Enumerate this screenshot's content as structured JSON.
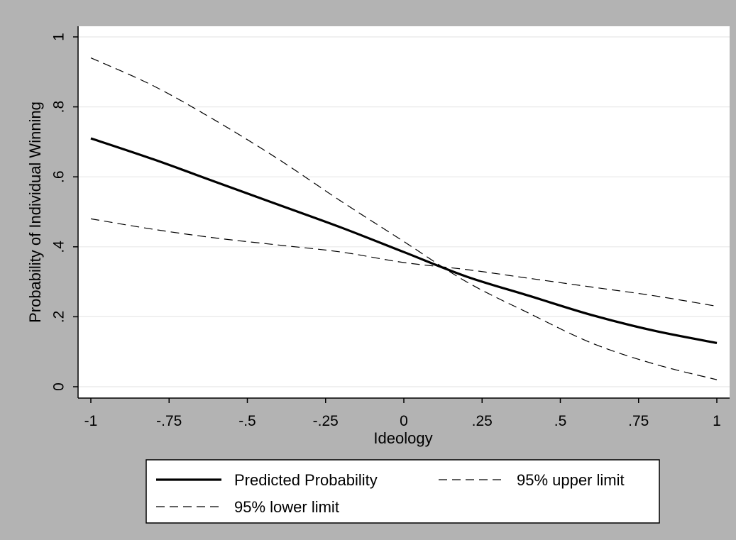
{
  "chart_data": {
    "type": "line",
    "title": "",
    "xlabel": "Ideology",
    "ylabel": "Probability of Individual Winning",
    "xlim": [
      -1,
      1
    ],
    "ylim": [
      0,
      1
    ],
    "xticks": [
      -1,
      -0.75,
      -0.5,
      -0.25,
      0,
      0.25,
      0.5,
      0.75,
      1
    ],
    "xtick_labels": [
      "-1",
      "-.75",
      "-.5",
      "-.25",
      "0",
      ".25",
      ".5",
      ".75",
      "1"
    ],
    "yticks": [
      0,
      0.2,
      0.4,
      0.6,
      0.8,
      1
    ],
    "ytick_labels": [
      "0",
      ".2",
      ".4",
      ".6",
      ".8",
      "1"
    ],
    "grid": true,
    "legend_position": "bottom",
    "x": [
      -1,
      -0.8,
      -0.6,
      -0.4,
      -0.2,
      0,
      0.2,
      0.4,
      0.6,
      0.8,
      1
    ],
    "series": [
      {
        "name": "Predicted Probability",
        "style": "solid",
        "color": "#000000",
        "values": [
          0.71,
          0.65,
          0.585,
          0.52,
          0.455,
          0.385,
          0.315,
          0.26,
          0.205,
          0.16,
          0.125
        ]
      },
      {
        "name": "95% upper limit",
        "style": "dashed",
        "color": "#000000",
        "values": [
          0.48,
          0.45,
          0.425,
          0.405,
          0.385,
          0.355,
          0.335,
          0.31,
          0.285,
          0.26,
          0.23
        ]
      },
      {
        "name": "95% lower limit",
        "style": "dashed",
        "color": "#000000",
        "values": [
          0.94,
          0.86,
          0.76,
          0.65,
          0.53,
          0.415,
          0.3,
          0.21,
          0.125,
          0.065,
          0.02
        ]
      }
    ]
  },
  "colors": {
    "outer_background": "#b3b3b3",
    "plot_background": "#ffffff",
    "grid": "#e8e8e8"
  }
}
